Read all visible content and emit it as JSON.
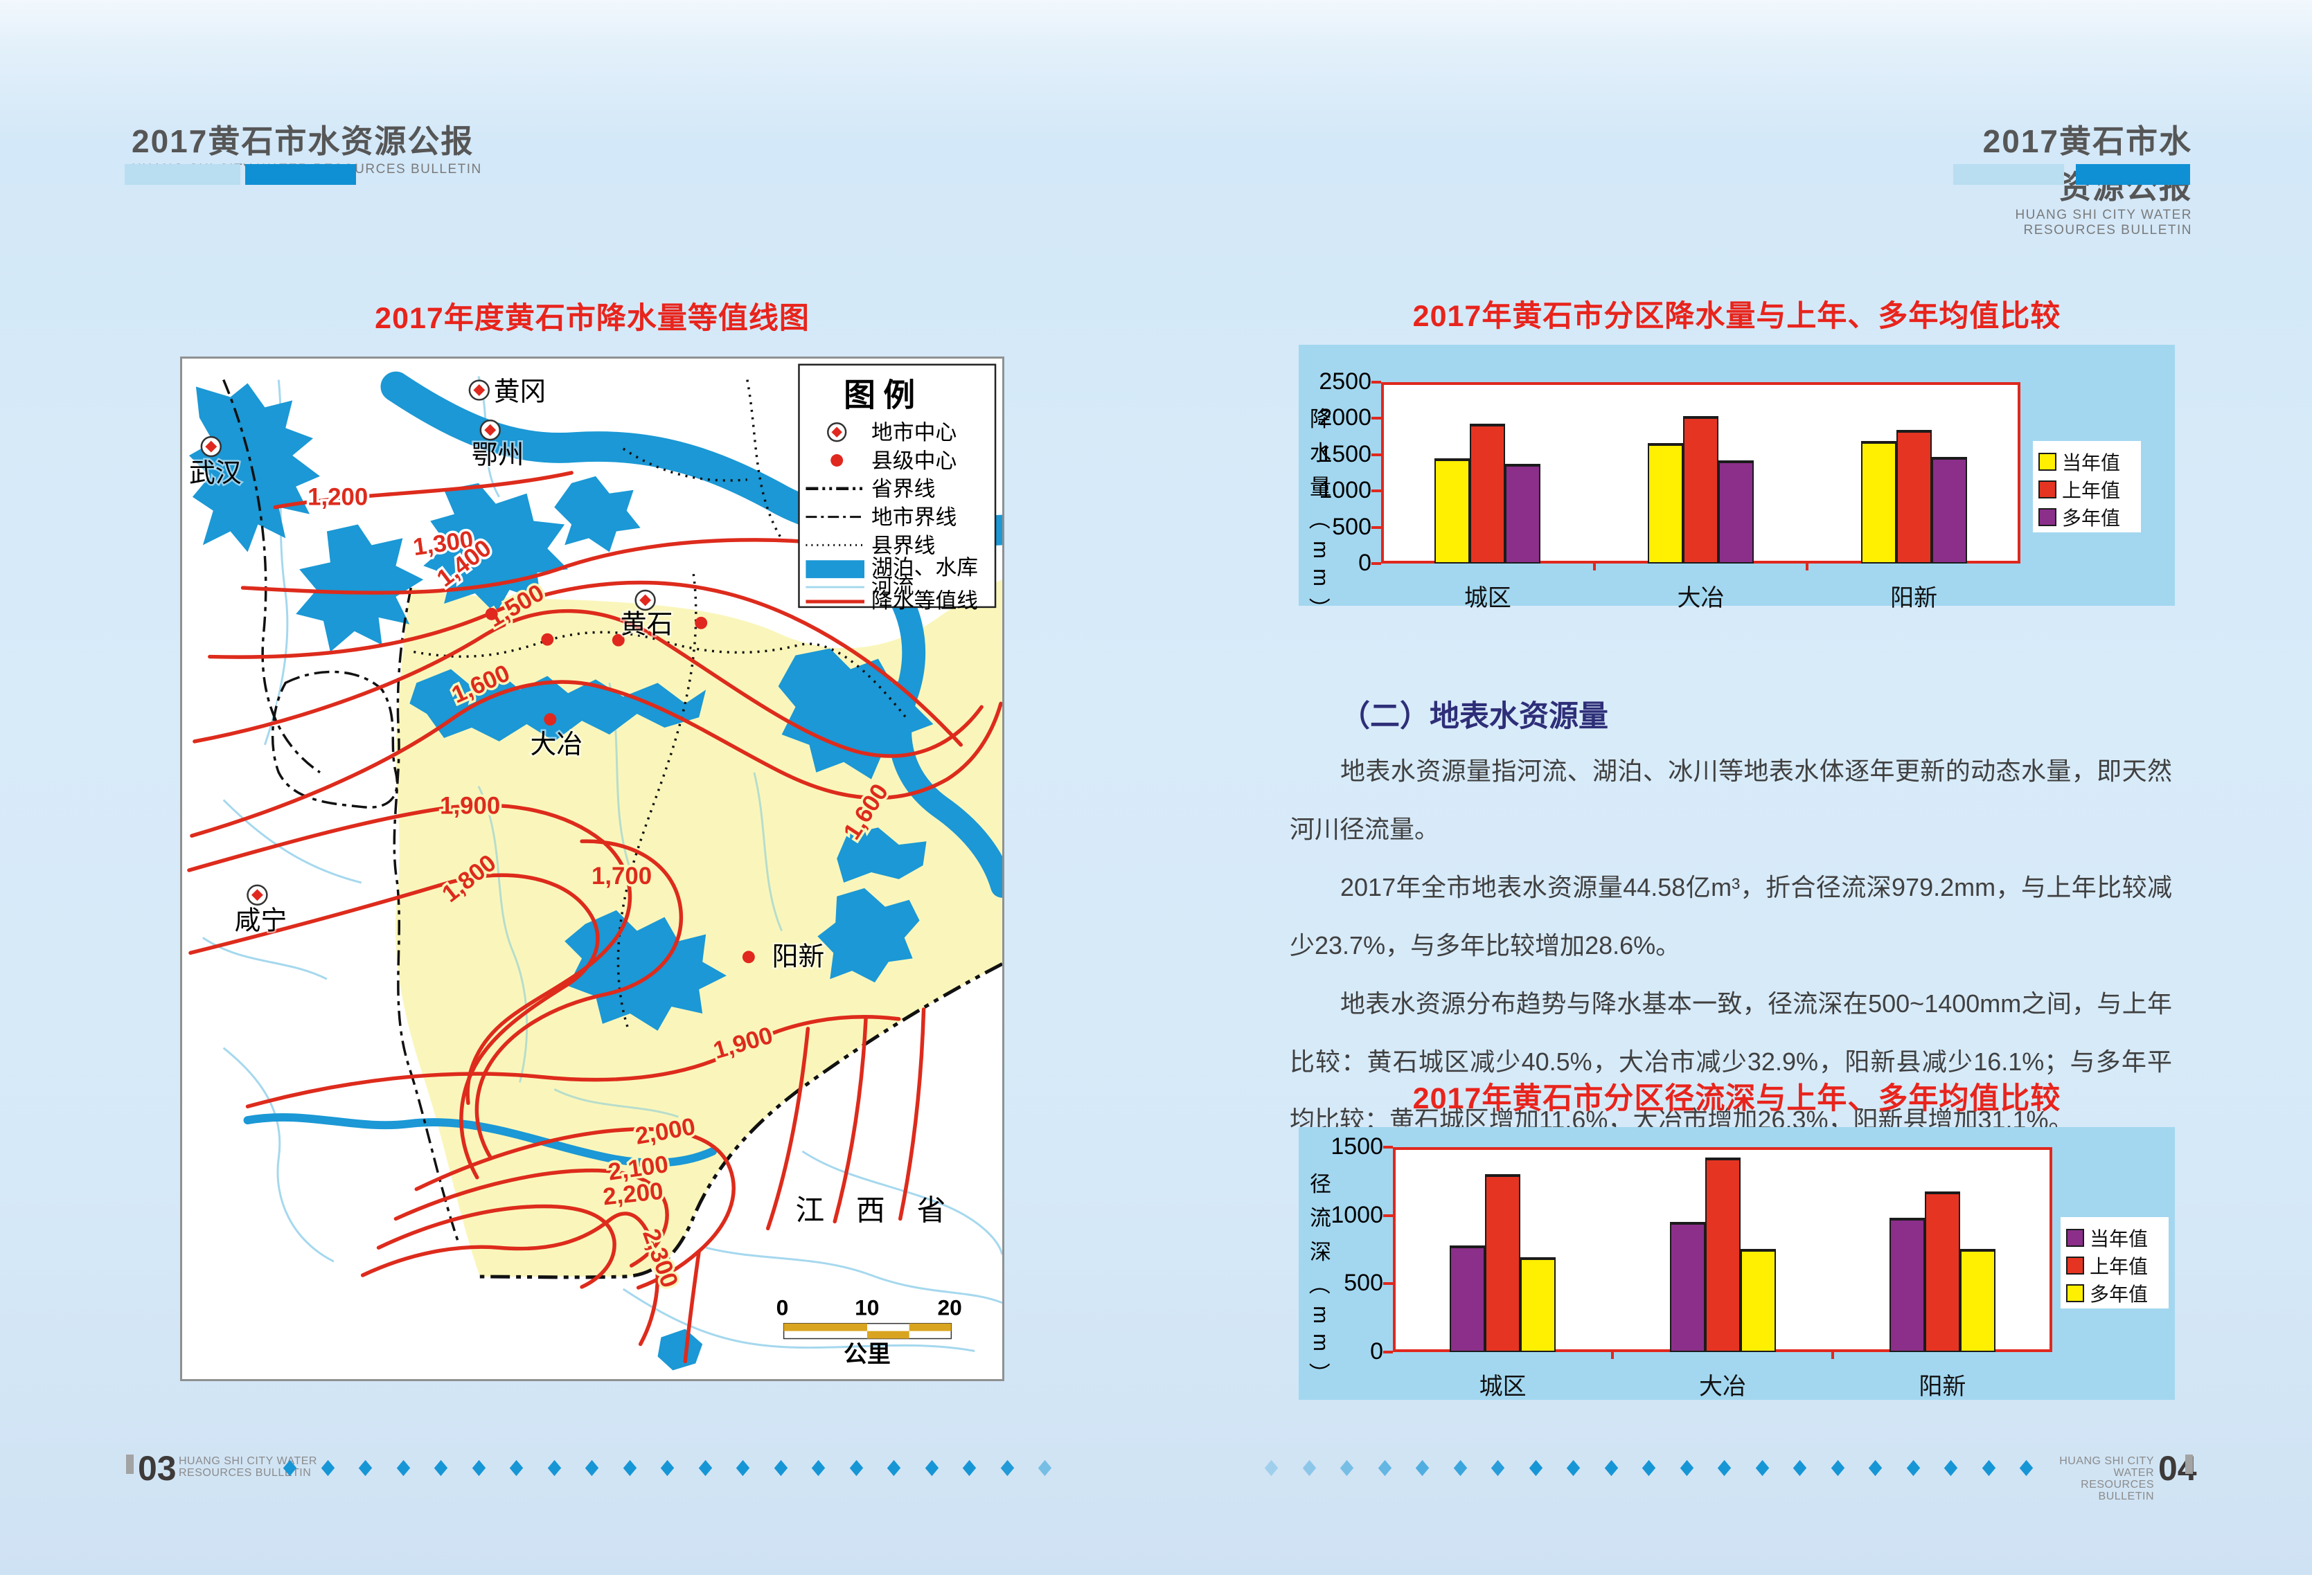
{
  "header": {
    "title": "2017黄石市水资源公报",
    "subtitle": "HUANG SHI CITY WATER RESOURCES BULLETIN"
  },
  "left_page": {
    "map_title": "2017年度黄石市降水量等值线图",
    "map": {
      "legend_title": "图  例",
      "legend_items": [
        {
          "label": "地市中心"
        },
        {
          "label": "县级中心"
        },
        {
          "label": "省界线"
        },
        {
          "label": "地市界线"
        },
        {
          "label": "县界线"
        },
        {
          "label": "湖泊、水库"
        },
        {
          "label": "河流"
        },
        {
          "label": "降水等值线"
        }
      ],
      "cities": [
        {
          "name": "武汉"
        },
        {
          "name": "黄冈"
        },
        {
          "name": "鄂州"
        },
        {
          "name": "黄石"
        },
        {
          "name": "大冶"
        },
        {
          "name": "阳新"
        },
        {
          "name": "咸宁"
        }
      ],
      "province_label": "江西省",
      "contour_labels": [
        "1,200",
        "1,300",
        "1,400",
        "1,500",
        "1,600",
        "1,600",
        "1,700",
        "1,800",
        "1,900",
        "1,900",
        "2,000",
        "2,100",
        "2,200",
        "2,300"
      ],
      "scale_ticks": [
        "0",
        "10",
        "20"
      ],
      "scale_unit": "公里"
    },
    "footer": {
      "page_num": "03",
      "line1": "HUANG SHI CITY WATER",
      "line2": "RESOURCES BULLETIN"
    }
  },
  "right_page": {
    "section_heading": "（二）地表水资源量",
    "paragraphs": [
      "地表水资源量指河流、湖泊、冰川等地表水体逐年更新的动态水量，即天然河川径流量。",
      "2017年全市地表水资源量44.58亿m³，折合径流深979.2mm，与上年比较减少23.7%，与多年比较增加28.6%。",
      "地表水资源分布趋势与降水基本一致，径流深在500~1400mm之间，与上年比较：黄石城区减少40.5%，大冶市减少32.9%，阳新县减少16.1%；与多年平均比较：黄石城区增加11.6%，大冶市增加26.3%，阳新县增加31.1%。"
    ],
    "footer": {
      "page_num": "04",
      "line1": "HUANG SHI CITY WATER",
      "line2": "RESOURCES BULLETIN"
    }
  },
  "chart_data": [
    {
      "type": "bar",
      "title": "2017年黄石市分区降水量与上年、多年均值比较",
      "categories": [
        "城区",
        "大冶",
        "阳新"
      ],
      "series": [
        {
          "name": "当年值",
          "color": "#ffef00",
          "values": [
            1450,
            1660,
            1690
          ]
        },
        {
          "name": "上年值",
          "color": "#e53422",
          "values": [
            1925,
            2035,
            1840
          ]
        },
        {
          "name": "多年值",
          "color": "#8b2f8a",
          "values": [
            1370,
            1425,
            1465
          ]
        }
      ],
      "ylabel": "降水量（mm）",
      "ylim": [
        0,
        2500
      ],
      "yticks": [
        0,
        500,
        1000,
        1500,
        2000,
        2500
      ],
      "legend_position": "right",
      "grid": false
    },
    {
      "type": "bar",
      "title": "2017年黄石市分区径流深与上年、多年均值比较",
      "categories": [
        "城区",
        "大冶",
        "阳新"
      ],
      "series": [
        {
          "name": "当年值",
          "color": "#8b2f8a",
          "values": [
            780,
            955,
            985
          ]
        },
        {
          "name": "上年值",
          "color": "#e53422",
          "values": [
            1300,
            1425,
            1175
          ]
        },
        {
          "name": "多年值",
          "color": "#ffef00",
          "values": [
            695,
            755,
            755
          ]
        }
      ],
      "ylabel": "径流深（mm）",
      "ylim": [
        0,
        1500
      ],
      "yticks": [
        0,
        500,
        1000,
        1500
      ],
      "legend_position": "right",
      "grid": false
    }
  ]
}
